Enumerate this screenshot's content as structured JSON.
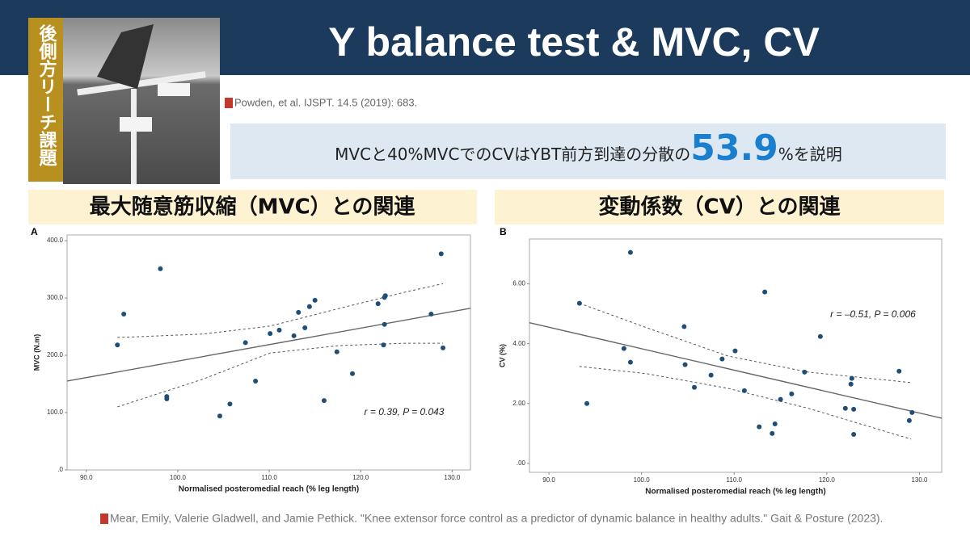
{
  "slide": {
    "title": "Y balance test & MVC, CV",
    "side_label": "後側方リーチ課題",
    "citation_top": "Powden, et al. IJSPT. 14.5 (2019): 683.",
    "summary": {
      "before": "MVCと40%MVCでのCVはYBT前方到達の分散の",
      "highlight": "53.9",
      "after": "%を説明"
    },
    "section_left": "最大随意筋収縮（MVC）との関連",
    "section_right": "変動係数（CV）との関連",
    "citation_bottom": "Mear, Emily, Valerie Gladwell, and Jamie Pethick. \"Knee extensor force control as a predictor of dynamic balance in healthy adults.\" Gait & Posture (2023)."
  },
  "chart_data": [
    {
      "type": "scatter",
      "panel": "A",
      "x_label": "Normalised posteromedial reach (% leg length)",
      "y_label": "MVC (N.m)",
      "annotation": "r = 0.39, P = 0.043",
      "color": "#1f4e79",
      "x": [
        93.4,
        94.1,
        98.1,
        98.8,
        98.8,
        104.6,
        105.7,
        107.4,
        108.5,
        110.1,
        111.1,
        112.7,
        113.2,
        113.9,
        114.4,
        115.0,
        116.0,
        117.4,
        119.1,
        121.9,
        122.6,
        122.7,
        122.6,
        122.5,
        127.7,
        128.8,
        129.0
      ],
      "values": [
        218,
        272,
        351,
        128,
        124,
        94,
        115,
        222,
        155,
        238,
        244,
        234,
        275,
        248,
        285,
        296,
        121,
        206,
        168,
        290,
        301,
        304,
        254,
        218,
        272,
        377,
        213
      ],
      "fit_line": {
        "x": [
          87.9,
          132
        ],
        "y": [
          155,
          282
        ]
      },
      "ci_upper": {
        "x": [
          93.4,
          102.7,
          110.1,
          117.7,
          124.8,
          129.0
        ],
        "y": [
          231,
          237,
          251,
          282,
          310,
          325
        ]
      },
      "ci_lower": {
        "x": [
          93.4,
          102.7,
          110.1,
          117.7,
          124.8,
          129.0
        ],
        "y": [
          110,
          158,
          204,
          217,
          221,
          221
        ]
      },
      "xlim": [
        87.9,
        132
      ],
      "ylim": [
        0,
        410
      ],
      "xticks": [
        {
          "value": 90,
          "label": "90.0"
        },
        {
          "value": 100,
          "label": "100.0"
        },
        {
          "value": 110,
          "label": "110.0"
        },
        {
          "value": 120,
          "label": "120.0"
        },
        {
          "value": 130,
          "label": "130.0"
        }
      ],
      "yticks": [
        {
          "value": 0,
          "label": ".0"
        },
        {
          "value": 100,
          "label": "100.0"
        },
        {
          "value": 200,
          "label": "200.0"
        },
        {
          "value": 300,
          "label": "300.0"
        },
        {
          "value": 400,
          "label": "400.0"
        }
      ]
    },
    {
      "type": "scatter",
      "panel": "B",
      "x_label": "Normalised posteromedial reach (% leg length)",
      "y_label": "CV (%)",
      "annotation": "r = –0.51, P = 0.006",
      "color": "#1f4e79",
      "x": [
        93.3,
        94.1,
        98.1,
        98.8,
        98.8,
        104.6,
        104.7,
        105.7,
        107.5,
        108.7,
        110.1,
        111.1,
        112.7,
        113.3,
        114.1,
        114.4,
        115.0,
        116.2,
        117.6,
        119.3,
        122.0,
        122.6,
        122.7,
        122.9,
        122.9,
        127.8,
        128.9,
        129.2
      ],
      "values": [
        5.35,
        2.0,
        3.84,
        7.05,
        3.38,
        4.57,
        3.3,
        2.54,
        2.95,
        3.49,
        3.76,
        2.43,
        1.22,
        5.73,
        1.0,
        1.32,
        2.14,
        2.32,
        3.05,
        4.24,
        1.84,
        2.65,
        2.84,
        1.81,
        0.97,
        3.08,
        1.43,
        1.7
      ],
      "fit_line": {
        "x": [
          87.9,
          132.4
        ],
        "y": [
          4.7,
          1.51
        ]
      },
      "ci_upper": {
        "x": [
          93.3,
          100.5,
          109.3,
          118.0,
          129.1
        ],
        "y": [
          5.35,
          4.54,
          3.59,
          3.05,
          2.7
        ]
      },
      "ci_lower": {
        "x": [
          93.3,
          100.5,
          109.3,
          118.0,
          129.1
        ],
        "y": [
          3.24,
          3.0,
          2.51,
          1.84,
          0.81
        ]
      },
      "xlim": [
        87.9,
        132.4
      ],
      "ylim": [
        -0.3,
        7.5
      ],
      "xticks": [
        {
          "value": 90,
          "label": "90.0"
        },
        {
          "value": 100,
          "label": "100.0"
        },
        {
          "value": 110,
          "label": "110.0"
        },
        {
          "value": 120,
          "label": "120.0"
        },
        {
          "value": 130,
          "label": "130.0"
        }
      ],
      "yticks": [
        {
          "value": 0,
          "label": ".00"
        },
        {
          "value": 2,
          "label": "2.00"
        },
        {
          "value": 4,
          "label": "4.00"
        },
        {
          "value": 6,
          "label": "6.00"
        }
      ]
    }
  ]
}
